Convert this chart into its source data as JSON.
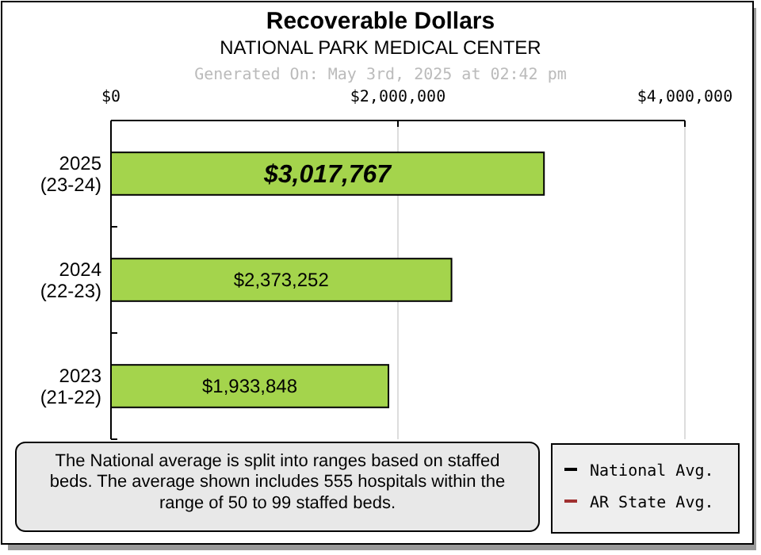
{
  "chart_data": {
    "type": "bar",
    "orientation": "horizontal",
    "title": "Recoverable Dollars",
    "subtitle": "NATIONAL PARK MEDICAL CENTER",
    "annotations": [
      "Generated On: May 3rd, 2025 at 02:42 pm",
      "The National average is split into ranges based on staffed beds. The average shown includes 555 hospitals within the range of 50 to 99 staffed beds."
    ],
    "categories": [
      "2025\n(23-24)",
      "2024\n(22-23)",
      "2023\n(21-22)"
    ],
    "series": [
      {
        "color": "#a4d44c",
        "values": [
          3017767,
          2373252,
          1933848
        ],
        "value_labels": [
          "$3,017,767",
          "$2,373,252",
          "$1,933,848"
        ]
      },
      {
        "type": "line",
        "name": "National Avg.",
        "color": "#000000",
        "values": [
          null,
          null,
          null
        ]
      },
      {
        "type": "line",
        "name": "AR State Avg.",
        "color": "#a03030",
        "values": [
          null,
          null,
          null
        ]
      }
    ],
    "xlim": [
      0,
      4000000
    ],
    "xticks": [
      {
        "value": 0,
        "label": "$0"
      },
      {
        "value": 2000000,
        "label": "$2,000,000"
      },
      {
        "value": 4000000,
        "label": "$4,000,000"
      }
    ],
    "grid": "x",
    "legend": "bottom right"
  }
}
